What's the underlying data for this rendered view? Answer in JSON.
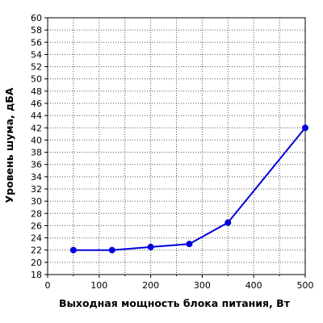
{
  "chart_data": {
    "type": "line",
    "xlabel": "Выходная мощность блока питания, Вт",
    "ylabel": "Уровень шума, дБА",
    "xlim": [
      0,
      500
    ],
    "ylim": [
      18,
      60
    ],
    "xticks": [
      0,
      100,
      200,
      300,
      400,
      500
    ],
    "yticks": [
      18,
      20,
      22,
      24,
      26,
      28,
      30,
      32,
      34,
      36,
      38,
      40,
      42,
      44,
      46,
      48,
      50,
      52,
      54,
      56,
      58,
      60
    ],
    "x_minor_step": 50,
    "grid": true,
    "legend": "none",
    "series": [
      {
        "x": [
          50,
          125,
          200,
          275,
          350,
          500
        ],
        "y": [
          22,
          22,
          22.5,
          23,
          26.5,
          42
        ],
        "color": "#0000dd"
      }
    ]
  }
}
